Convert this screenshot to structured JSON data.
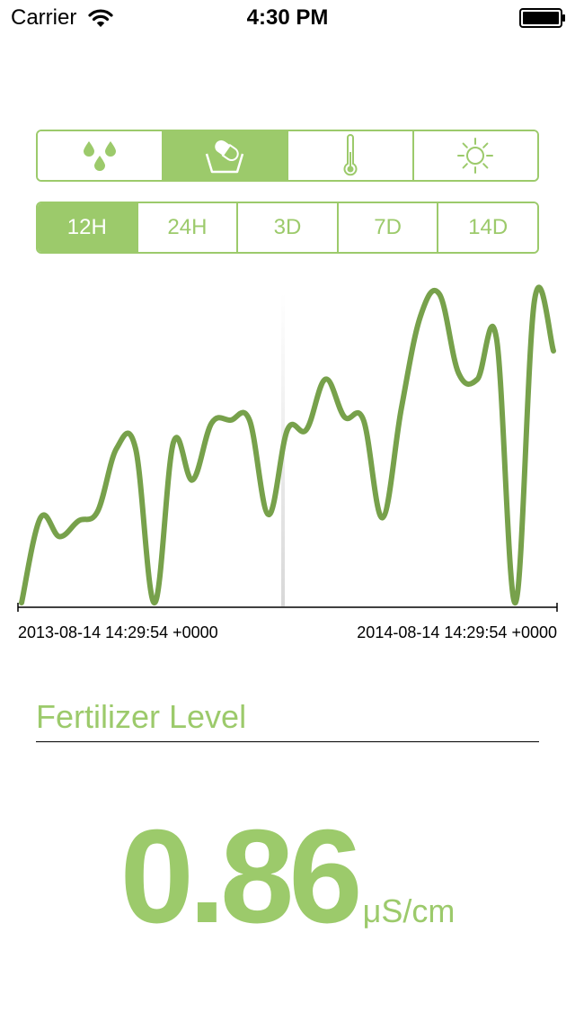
{
  "status_bar": {
    "carrier": "Carrier",
    "time": "4:30 PM"
  },
  "sensor_tabs": [
    {
      "icon": "water-drops-icon",
      "selected": false
    },
    {
      "icon": "fertilizer-pill-icon",
      "selected": true
    },
    {
      "icon": "thermometer-icon",
      "selected": false
    },
    {
      "icon": "sun-icon",
      "selected": false
    }
  ],
  "range_tabs": [
    {
      "label": "12H",
      "selected": true
    },
    {
      "label": "24H",
      "selected": false
    },
    {
      "label": "3D",
      "selected": false
    },
    {
      "label": "7D",
      "selected": false
    },
    {
      "label": "14D",
      "selected": false
    }
  ],
  "chart_data": {
    "type": "line",
    "x_start_label": "2013-08-14 14:29:54 +0000",
    "x_end_label": "2014-08-14 14:29:54 +0000",
    "line_color": "#77a14b",
    "values": [
      0.0,
      0.27,
      0.21,
      0.26,
      0.29,
      0.49,
      0.49,
      0.0,
      0.51,
      0.39,
      0.57,
      0.58,
      0.58,
      0.28,
      0.55,
      0.55,
      0.71,
      0.59,
      0.58,
      0.27,
      0.62,
      0.91,
      0.98,
      0.73,
      0.71,
      0.84,
      0.0,
      0.96,
      0.8
    ],
    "ylim": [
      0,
      1
    ]
  },
  "metric": {
    "title": "Fertilizer Level",
    "value": "0.86",
    "unit": "μS/cm"
  },
  "colors": {
    "accent": "#9cca6b",
    "line": "#77a14b"
  }
}
